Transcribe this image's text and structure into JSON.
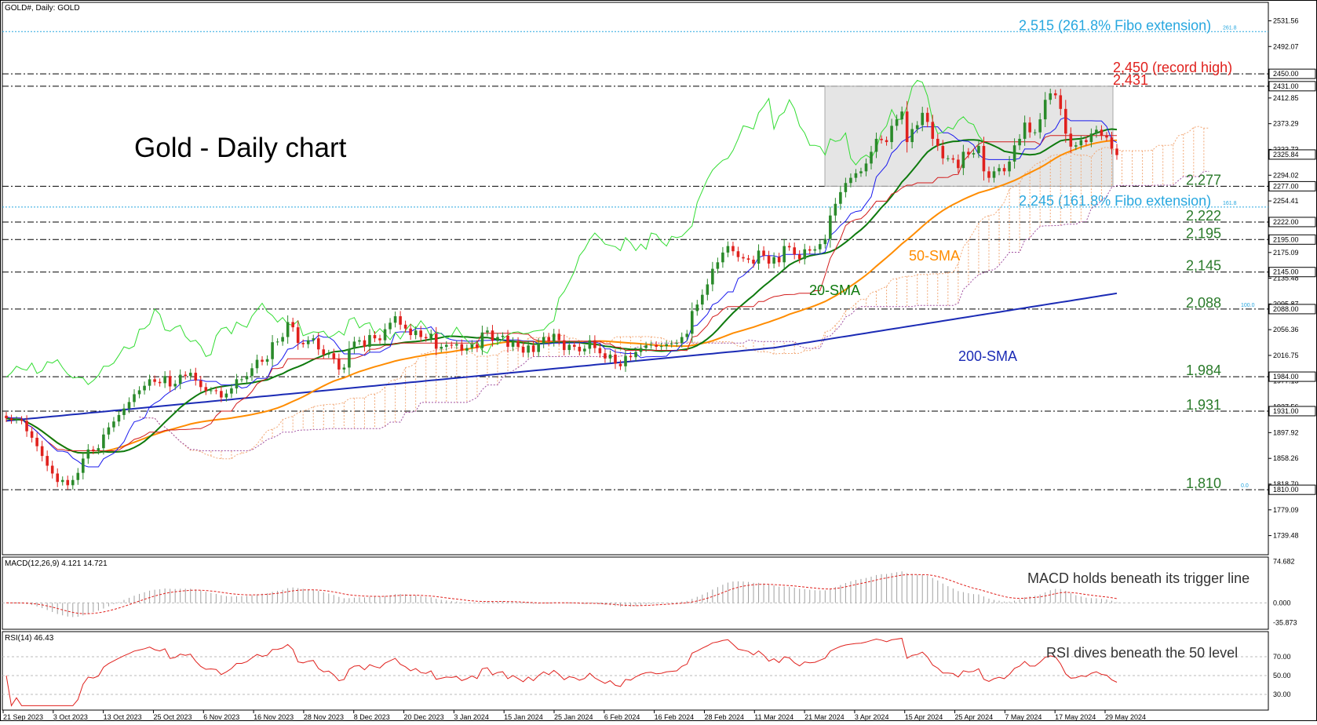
{
  "header": {
    "main_title": "GOLD#, Daily:  GOLD",
    "chart_title": "Gold - Daily chart",
    "macd_title": "MACD(12,26,9) 4.121 14.721",
    "rsi_title": "RSI(14) 46.43"
  },
  "colors": {
    "up": "#2a8a2a",
    "down": "#e0211d",
    "sma20": "#0e7a0e",
    "sma50": "#ff8c00",
    "sma200": "#1b2bb5",
    "tenkan": "#1a1aee",
    "kijun": "#d21d1d",
    "chikou": "#33dd33",
    "cloud": "#f2a978",
    "fibo": "#27a7df",
    "record": "#e0211d",
    "level": "#2a7a2a"
  },
  "chart_data": {
    "type": "candlestick",
    "title": "Gold - Daily chart",
    "ylim": [
      1710,
      2560
    ],
    "x_labels": [
      "21 Sep 2023",
      "3 Oct 2023",
      "13 Oct 2023",
      "25 Oct 2023",
      "6 Nov 2023",
      "16 Nov 2023",
      "28 Nov 2023",
      "8 Dec 2023",
      "20 Dec 2023",
      "3 Jan 2024",
      "15 Jan 2024",
      "25 Jan 2024",
      "6 Feb 2024",
      "16 Feb 2024",
      "28 Feb 2024",
      "11 Mar 2024",
      "21 Mar 2024",
      "3 Apr 2024",
      "15 Apr 2024",
      "25 Apr 2024",
      "7 May 2024",
      "17 May 2024",
      "29 May 2024"
    ],
    "y_ticks": [
      "2531.56",
      "2492.07",
      "2412.85",
      "2373.29",
      "2333.73",
      "2294.02",
      "2254.41",
      "2175.09",
      "2135.48",
      "2095.87",
      "2056.36",
      "2016.75",
      "1977.15",
      "1937.56",
      "1897.92",
      "1858.26",
      "1818.70",
      "1779.09",
      "1739.48"
    ],
    "closes": [
      1920,
      1917,
      1918,
      1916,
      1900,
      1890,
      1877,
      1862,
      1847,
      1835,
      1822,
      1825,
      1817,
      1825,
      1836,
      1858,
      1872,
      1870,
      1874,
      1895,
      1906,
      1915,
      1925,
      1935,
      1945,
      1957,
      1963,
      1970,
      1980,
      1976,
      1974,
      1985,
      1969,
      1973,
      1987,
      1985,
      1990,
      1978,
      1968,
      1962,
      1963,
      1962,
      1952,
      1958,
      1966,
      1980,
      1980,
      1985,
      1997,
      2010,
      2007,
      2011,
      2037,
      2038,
      2045,
      2068,
      2060,
      2036,
      2034,
      2040,
      2043,
      2026,
      2018,
      2020,
      2011,
      1995,
      1998,
      2027,
      2038,
      2040,
      2030,
      2048,
      2043,
      2040,
      2057,
      2067,
      2077,
      2064,
      2058,
      2048,
      2055,
      2045,
      2043,
      2050,
      2027,
      2030,
      2033,
      2032,
      2034,
      2024,
      2028,
      2034,
      2028,
      2052,
      2055,
      2039,
      2045,
      2047,
      2030,
      2038,
      2030,
      2021,
      2032,
      2022,
      2035,
      2045,
      2038,
      2050,
      2040,
      2025,
      2033,
      2030,
      2023,
      2027,
      2040,
      2028,
      2020,
      2012,
      2018,
      2004,
      2000,
      2016,
      2014,
      2022,
      2028,
      2032,
      2033,
      2030,
      2031,
      2034,
      2035,
      2036,
      2045,
      2050,
      2085,
      2095,
      2110,
      2126,
      2150,
      2160,
      2175,
      2185,
      2177,
      2168,
      2166,
      2164,
      2158,
      2178,
      2170,
      2158,
      2168,
      2160,
      2185,
      2183,
      2172,
      2165,
      2180,
      2178,
      2180,
      2188,
      2196,
      2232,
      2250,
      2268,
      2282,
      2290,
      2297,
      2300,
      2312,
      2330,
      2350,
      2348,
      2345,
      2370,
      2380,
      2392,
      2345,
      2365,
      2371,
      2390,
      2376,
      2350,
      2339,
      2320,
      2320,
      2318,
      2305,
      2330,
      2326,
      2328,
      2339,
      2300,
      2290,
      2300,
      2305,
      2300,
      2315,
      2340,
      2350,
      2375,
      2360,
      2360,
      2380,
      2410,
      2420,
      2417,
      2396,
      2358,
      2338,
      2340,
      2348,
      2345,
      2358,
      2364,
      2355,
      2352,
      2335,
      2325
    ],
    "levels": [
      {
        "value": 2515,
        "label": "2,515 (261.8% Fibo extension)",
        "style": "fibo",
        "tag": "261.8"
      },
      {
        "value": 2450,
        "label": "2,450 (record high)",
        "style": "record"
      },
      {
        "value": 2431,
        "label": "2,431",
        "style": "record"
      },
      {
        "value": 2277,
        "label": "2,277",
        "style": "level"
      },
      {
        "value": 2245,
        "label": "2,245 (161.8% Fibo extension)",
        "style": "fibo",
        "tag": "161.8"
      },
      {
        "value": 2222,
        "label": "2,222",
        "style": "level"
      },
      {
        "value": 2195,
        "label": "2,195",
        "style": "level"
      },
      {
        "value": 2145,
        "label": "2,145",
        "style": "level"
      },
      {
        "value": 2088,
        "label": "2,088",
        "style": "level",
        "tag": "100.0"
      },
      {
        "value": 1984,
        "label": "1,984",
        "style": "level"
      },
      {
        "value": 1931,
        "label": "1,931",
        "style": "level"
      },
      {
        "value": 1810,
        "label": "1,810",
        "style": "level",
        "tag": "0.0"
      }
    ],
    "highlighted_price_tags": [
      "2450.00",
      "2431.00",
      "2325.84",
      "2277.00",
      "2222.00",
      "2195.00",
      "2145.00",
      "2088.00",
      "1984.00",
      "1931.00",
      "1810.00"
    ],
    "annotations": {
      "sma20": "20-SMA",
      "sma50": "50-SMA",
      "sma200": "200-SMA"
    },
    "range_box": [
      2277,
      2431
    ],
    "macd": {
      "ylim": [
        -45,
        80
      ],
      "ticks": [
        "74.682",
        "0.000",
        "-35.873"
      ],
      "note": "MACD holds beneath its trigger line"
    },
    "rsi": {
      "ylim": [
        15,
        95
      ],
      "ticks": [
        "70.00",
        "50.00",
        "30.00"
      ],
      "note": "RSI dives beneath the 50 level"
    }
  }
}
